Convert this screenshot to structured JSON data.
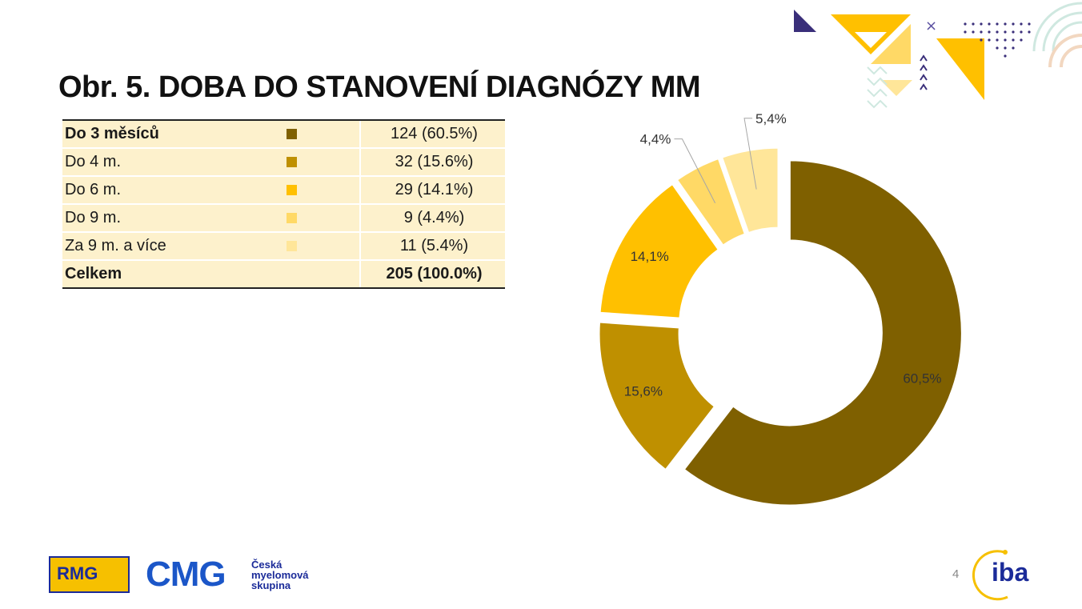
{
  "title": "Obr. 5. DOBA DO STANOVENÍ DIAGNÓZY MM",
  "table": {
    "rows": [
      {
        "label": "Do 3 měsíců",
        "value": "124 (60.5%)",
        "color": "#7f6000"
      },
      {
        "label": "Do 4 m.",
        "value": "32 (15.6%)",
        "color": "#bf9000"
      },
      {
        "label": "Do 6 m.",
        "value": "29 (14.1%)",
        "color": "#ffc000"
      },
      {
        "label": "Do 9 m.",
        "value": "9 (4.4%)",
        "color": "#ffd966"
      },
      {
        "label": "Za 9 m. a více",
        "value": "11 (5.4%)",
        "color": "#ffe699"
      }
    ],
    "total": {
      "label": "Celkem",
      "value": "205 (100.0%)"
    }
  },
  "chart_data": {
    "type": "pie",
    "variant": "donut",
    "categories": [
      "Do 3 měsíců",
      "Do 4 m.",
      "Do 6 m.",
      "Do 9 m.",
      "Za 9 m. a více"
    ],
    "values": [
      124,
      32,
      29,
      9,
      11
    ],
    "labels": [
      "60,5%",
      "15,6%",
      "14,1%",
      "4,4%",
      "5,4%"
    ],
    "colors": [
      "#7f6000",
      "#bf9000",
      "#ffc000",
      "#ffd966",
      "#ffe699"
    ]
  },
  "footer": {
    "rmg_logo": "RMG",
    "cmg_logo": "CMG",
    "cmg_sub": [
      "Česká",
      "myelomová",
      "skupina"
    ],
    "page_number": "4",
    "iba_logo": "iba"
  }
}
